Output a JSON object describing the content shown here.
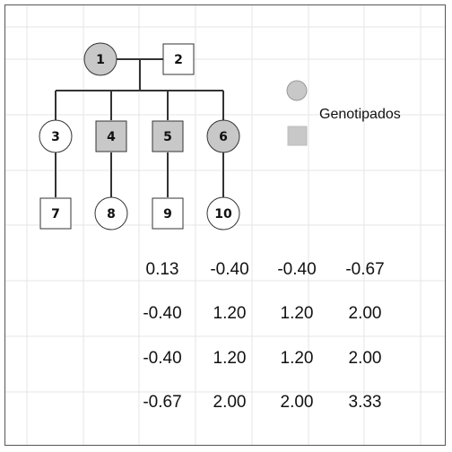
{
  "pedigree": {
    "individuals": [
      {
        "id": "1",
        "label": "1",
        "shape": "circle",
        "genotyped": true
      },
      {
        "id": "2",
        "label": "2",
        "shape": "square",
        "genotyped": false
      },
      {
        "id": "3",
        "label": "3",
        "shape": "circle",
        "genotyped": false
      },
      {
        "id": "4",
        "label": "4",
        "shape": "square",
        "genotyped": true
      },
      {
        "id": "5",
        "label": "5",
        "shape": "square",
        "genotyped": true
      },
      {
        "id": "6",
        "label": "6",
        "shape": "circle",
        "genotyped": true
      },
      {
        "id": "7",
        "label": "7",
        "shape": "square",
        "genotyped": false
      },
      {
        "id": "8",
        "label": "8",
        "shape": "circle",
        "genotyped": false
      },
      {
        "id": "9",
        "label": "9",
        "shape": "square",
        "genotyped": false
      },
      {
        "id": "10",
        "label": "10",
        "shape": "circle",
        "genotyped": false
      }
    ],
    "parents": [
      "1",
      "2"
    ],
    "children_of_couple": [
      "3",
      "4",
      "5",
      "6"
    ],
    "descendants": [
      [
        "3",
        "7"
      ],
      [
        "4",
        "8"
      ],
      [
        "5",
        "9"
      ],
      [
        "6",
        "10"
      ]
    ]
  },
  "legend": {
    "label": "Genotipados",
    "symbols": [
      "circle",
      "square"
    ]
  },
  "matrix": {
    "rows": [
      [
        "0.13",
        "-0.40",
        "-0.40",
        "-0.67"
      ],
      [
        "-0.40",
        "1.20",
        "1.20",
        "2.00"
      ],
      [
        "-0.40",
        "1.20",
        "1.20",
        "2.00"
      ],
      [
        "-0.67",
        "2.00",
        "2.00",
        "3.33"
      ]
    ]
  },
  "colors": {
    "genotyped_fill": "#c8c8c8",
    "ungenotyped_fill": "#ffffff",
    "stroke": "#333333",
    "grid": "#e6e6e6"
  }
}
